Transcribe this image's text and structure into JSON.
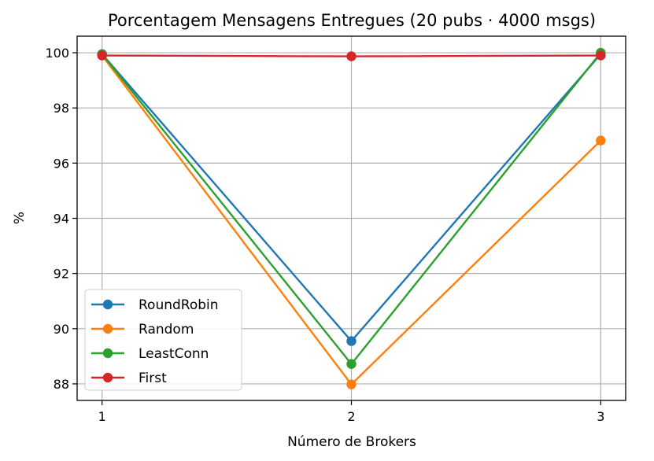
{
  "chart_data": {
    "type": "line",
    "title": "Porcentagem Mensagens Entregues (20 pubs · 4000 msgs)",
    "xlabel": "Número de Brokers",
    "ylabel": "%",
    "x": [
      1,
      2,
      3
    ],
    "x_tick_labels": [
      "1",
      "2",
      "3"
    ],
    "y_ticks": [
      88,
      90,
      92,
      94,
      96,
      98,
      100
    ],
    "y_tick_labels": [
      "88",
      "90",
      "92",
      "94",
      "96",
      "98",
      "100"
    ],
    "xlim": [
      0.9,
      3.1
    ],
    "ylim": [
      87.4,
      100.6
    ],
    "grid": true,
    "legend_position": "lower-left",
    "series": [
      {
        "name": "RoundRobin",
        "color": "#1f77b4",
        "values": [
          99.95,
          89.55,
          99.95
        ]
      },
      {
        "name": "Random",
        "color": "#ff7f0e",
        "values": [
          99.9,
          87.98,
          96.82
        ]
      },
      {
        "name": "LeastConn",
        "color": "#2ca02c",
        "values": [
          99.95,
          88.72,
          100.0
        ]
      },
      {
        "name": "First",
        "color": "#d62728",
        "values": [
          99.9,
          99.87,
          99.9
        ]
      }
    ]
  }
}
